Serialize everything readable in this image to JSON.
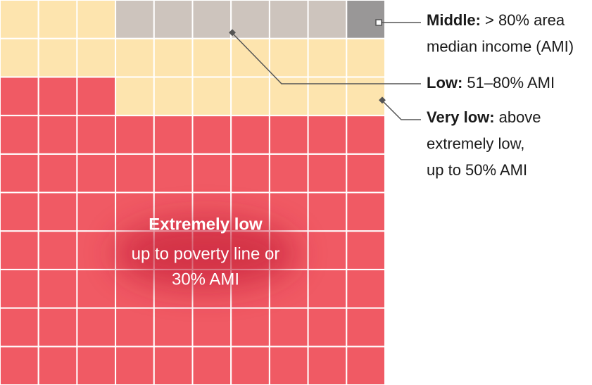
{
  "chart_data": {
    "type": "waffle",
    "rows": 10,
    "columns": 10,
    "series": [
      {
        "name": "Extremely low",
        "description": [
          "up to poverty line or",
          "30% AMI"
        ],
        "color": "#f05a64",
        "values": [
          73
        ]
      },
      {
        "name": "Very low:",
        "description": [
          "above",
          "extremely low,",
          "up to 50% AMI"
        ],
        "color": "#fde4ae",
        "values": [
          20
        ]
      },
      {
        "name": "Low:",
        "description": [
          "51–80% AMI"
        ],
        "color": "#cdc4bd",
        "values": [
          6
        ]
      },
      {
        "name": "Middle:",
        "description": [
          "> 80% area",
          "median income (AMI)"
        ],
        "color": "#999797",
        "values": [
          1
        ]
      }
    ]
  }
}
